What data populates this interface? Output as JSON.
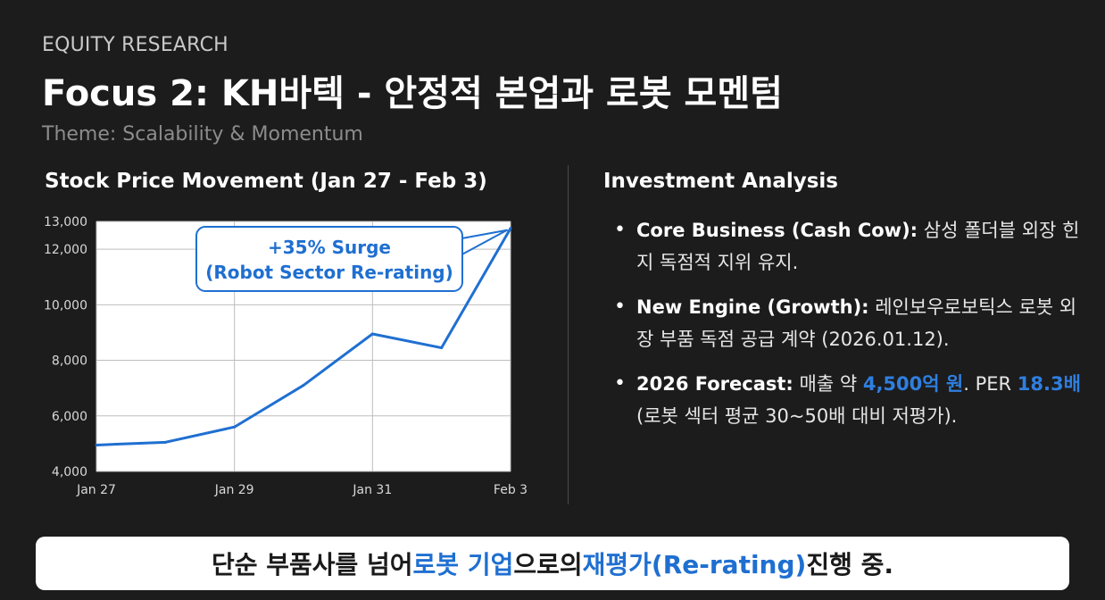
{
  "header": {
    "kicker": "EQUITY RESEARCH",
    "title": "Focus 2: KH바텍  - 안정적 본업과 로봇 모멘텀",
    "subtitle": "Theme: Scalability & Momentum"
  },
  "chart_section": {
    "title": "Stock Price Movement (Jan 27 - Feb 3)"
  },
  "chart_data": {
    "type": "line",
    "title": "Stock Price Movement (Jan 27 - Feb 3)",
    "x_labels": [
      "Jan 27",
      "",
      "Jan 29",
      "",
      "Jan 31",
      "",
      "Feb 3"
    ],
    "x_tick_labels": [
      "Jan 27",
      "Jan 29",
      "Jan 31",
      "Feb 3"
    ],
    "series": [
      {
        "values": [
          4950,
          5050,
          5600,
          7100,
          8950,
          8450,
          12750
        ]
      }
    ],
    "y_ticks": [
      "4,000",
      "6,000",
      "8,000",
      "10,000",
      "12,000",
      "13,000"
    ],
    "y_tick_values": [
      4000,
      6000,
      8000,
      10000,
      12000,
      13000
    ],
    "ylim": [
      4000,
      13000
    ],
    "grid": true,
    "annotation": {
      "line1": "+35% Surge",
      "line2": "(Robot Sector Re-rating)"
    },
    "colors": {
      "line": "#1f6fd1",
      "callout_border": "#1f6fd1",
      "callout_text": "#1f6fd1"
    }
  },
  "analysis": {
    "title": "Investment Analysis",
    "items": [
      {
        "label": "Core Business (Cash Cow):",
        "text": " 삼성 폴더블 외장 힌지 독점적 지위 유지."
      },
      {
        "label": "New Engine (Growth):",
        "text": " 레인보우로보틱스 로봇 외장 부품 독점 공급 계약 (2026.01.12)."
      },
      {
        "label": "2026 Forecast:",
        "t1": " 매출 약 ",
        "h1": "4,500억 원",
        "t2": ". PER ",
        "h2": "18.3배",
        "t3": " (로봇 섹터 평균 30~50배 대비 저평가)."
      }
    ]
  },
  "banner": {
    "t1": "단순 부품사를 넘어 ",
    "h1": "로봇 기업",
    "t2": "으로의 ",
    "h2": "재평가(Re-rating)",
    "t3": " 진행 중."
  }
}
